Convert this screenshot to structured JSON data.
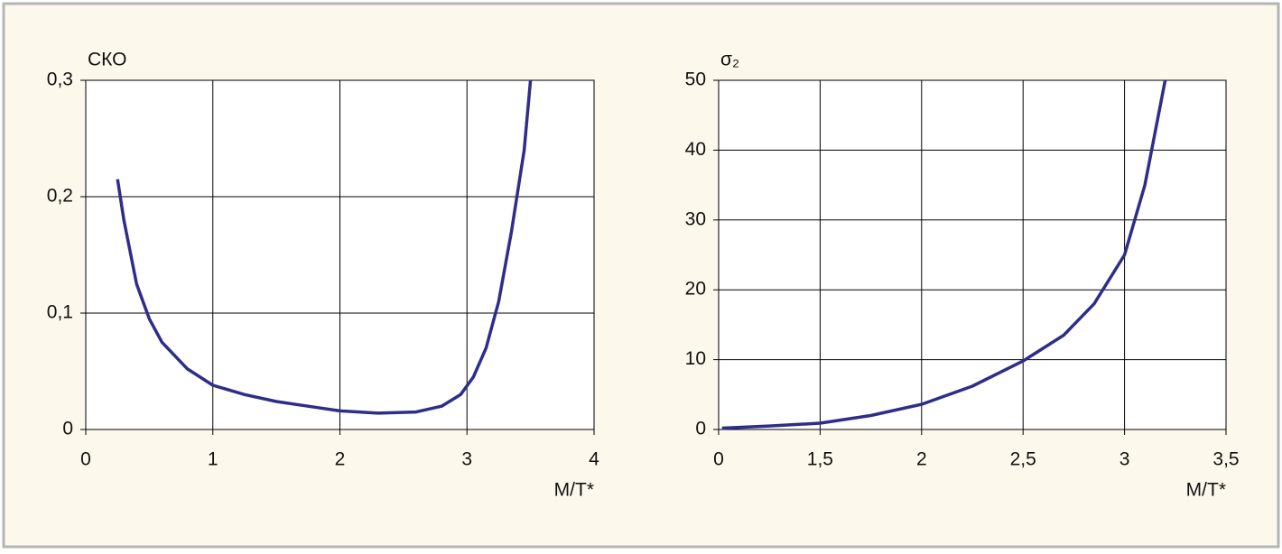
{
  "chart_data": [
    {
      "type": "line",
      "y_label": "СКО",
      "x_label": "M/T*",
      "x": [
        0.25,
        0.3,
        0.4,
        0.5,
        0.6,
        0.8,
        1.0,
        1.25,
        1.5,
        1.75,
        2.0,
        2.3,
        2.6,
        2.8,
        2.95,
        3.05,
        3.15,
        3.25,
        3.35,
        3.45,
        3.5
      ],
      "values": [
        0.215,
        0.18,
        0.125,
        0.095,
        0.075,
        0.052,
        0.038,
        0.03,
        0.024,
        0.02,
        0.016,
        0.014,
        0.015,
        0.02,
        0.03,
        0.045,
        0.07,
        0.11,
        0.17,
        0.24,
        0.3
      ],
      "color": "#2e2e8a",
      "xlim": [
        0,
        4
      ],
      "xticks": [
        0,
        1,
        2,
        3,
        4
      ],
      "ylim": [
        0,
        0.3
      ],
      "yticks": [
        0,
        {
          "value": 0.1,
          "label": "0,1"
        },
        {
          "value": 0.2,
          "label": "0,2"
        },
        {
          "value": 0.3,
          "label": "0,3"
        }
      ],
      "grid": true
    },
    {
      "type": "line",
      "y_label": "σ₂",
      "x_label": "M/T*",
      "x": [
        0.05,
        0.75,
        1.5,
        1.75,
        2.0,
        2.25,
        2.5,
        2.7,
        2.85,
        3.0,
        3.1,
        3.2
      ],
      "values": [
        0.2,
        0.5,
        0.9,
        2.0,
        3.6,
        6.2,
        9.8,
        13.5,
        18,
        25,
        35,
        50
      ],
      "color": "#2e2e8a",
      "xlim": [
        0,
        3.5
      ],
      "xticks": [
        0,
        {
          "value": 1.5,
          "label": "1,5"
        },
        2,
        {
          "value": 2.5,
          "label": "2,5"
        },
        3,
        {
          "value": 3.5,
          "label": "3,5"
        }
      ],
      "x_axis_break": true,
      "ylim": [
        0,
        50
      ],
      "yticks": [
        0,
        10,
        20,
        30,
        40,
        50
      ],
      "grid": true
    }
  ]
}
